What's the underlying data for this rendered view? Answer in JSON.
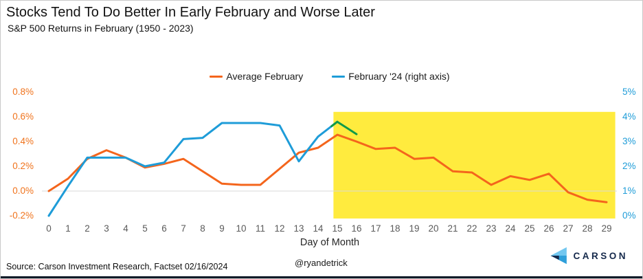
{
  "header": {
    "title": "Stocks Tend To Do Better In Early February and Worse Later",
    "subtitle": "S&P 500 Returns in February (1950 - 2023)"
  },
  "legend": [
    {
      "label": "Average February",
      "color": "#f4651c"
    },
    {
      "label": "February '24 (right axis)",
      "color": "#1e9cd8"
    }
  ],
  "chart_data": {
    "type": "line",
    "title": "Stocks Tend To Do Better In Early February and Worse Later",
    "subtitle": "S&P 500 Returns in February (1950 - 2023)",
    "xlabel": "Day of Month",
    "x": [
      0,
      1,
      2,
      3,
      4,
      5,
      6,
      7,
      8,
      9,
      10,
      11,
      12,
      13,
      14,
      15,
      16,
      17,
      18,
      19,
      20,
      21,
      22,
      23,
      24,
      25,
      26,
      27,
      28,
      29
    ],
    "x_tick_labels": [
      "0",
      "1",
      "2",
      "3",
      "4",
      "5",
      "6",
      "7",
      "8",
      "9",
      "10",
      "11",
      "12",
      "13",
      "14",
      "15",
      "16",
      "17",
      "18",
      "19",
      "20",
      "21",
      "22",
      "23",
      "24",
      "25",
      "26",
      "27",
      "28",
      "29"
    ],
    "left_axis": {
      "ticks": [
        "0.8%",
        "0.6%",
        "0.4%",
        "0.2%",
        "0.0%",
        "-0.2%"
      ],
      "min": -0.2,
      "max": 0.8,
      "color": "#f0731c",
      "unit": "%"
    },
    "right_axis": {
      "ticks": [
        "5%",
        "4%",
        "3%",
        "2%",
        "1%",
        "0%"
      ],
      "min": 0,
      "max": 5,
      "color": "#1e9cd8",
      "unit": "%"
    },
    "grid": "zero-line-only",
    "gridline_left_value": 0.0,
    "legend_position": "top-center",
    "series": [
      {
        "name": "Average February",
        "axis": "left",
        "color": "#f4651c",
        "x": [
          0,
          1,
          2,
          3,
          4,
          5,
          6,
          7,
          8,
          9,
          10,
          11,
          12,
          13,
          14,
          15,
          16,
          17,
          18,
          19,
          20,
          21,
          22,
          23,
          24,
          25,
          26,
          27,
          28,
          29
        ],
        "values": [
          0.0,
          0.1,
          0.26,
          0.33,
          0.27,
          0.19,
          0.22,
          0.26,
          0.16,
          0.06,
          0.05,
          0.05,
          0.18,
          0.31,
          0.35,
          0.455,
          0.4,
          0.34,
          0.35,
          0.26,
          0.27,
          0.16,
          0.15,
          0.05,
          0.12,
          0.09,
          0.14,
          -0.01,
          -0.07,
          -0.09
        ]
      },
      {
        "name": "February '24 (right axis)",
        "axis": "right",
        "color": "#1e9cd8",
        "x": [
          0,
          1,
          2,
          3,
          4,
          5,
          6,
          7,
          8,
          9,
          10,
          11,
          12,
          13,
          14,
          15
        ],
        "values": [
          0.0,
          1.2,
          2.35,
          2.35,
          2.35,
          2.0,
          2.15,
          3.1,
          3.15,
          3.75,
          3.75,
          3.75,
          3.65,
          2.2,
          3.2,
          3.8
        ]
      },
      {
        "name": "February '24 latest segment",
        "axis": "right",
        "color": "#109a48",
        "x": [
          14.7,
          15,
          16
        ],
        "values": [
          3.62,
          3.8,
          3.3
        ]
      }
    ],
    "highlight_region": {
      "axis": "right",
      "x0": 14.8,
      "x1": 29.45,
      "y0": -0.11,
      "y1": 4.2,
      "color": "#ffeb3e"
    }
  },
  "footer": {
    "source": "Source: Carson Investment Research, Factset 02/16/2024",
    "handle": "@ryandetrick",
    "logo_text": "CARSON"
  },
  "colors": {
    "gridline": "#d9d9d9",
    "x_tick": "#595959",
    "bottom_bar": "#101a28",
    "logo_navy": "#15294b",
    "logo_light_blue": "#72c7f0",
    "logo_mid_blue": "#2e9fda"
  }
}
